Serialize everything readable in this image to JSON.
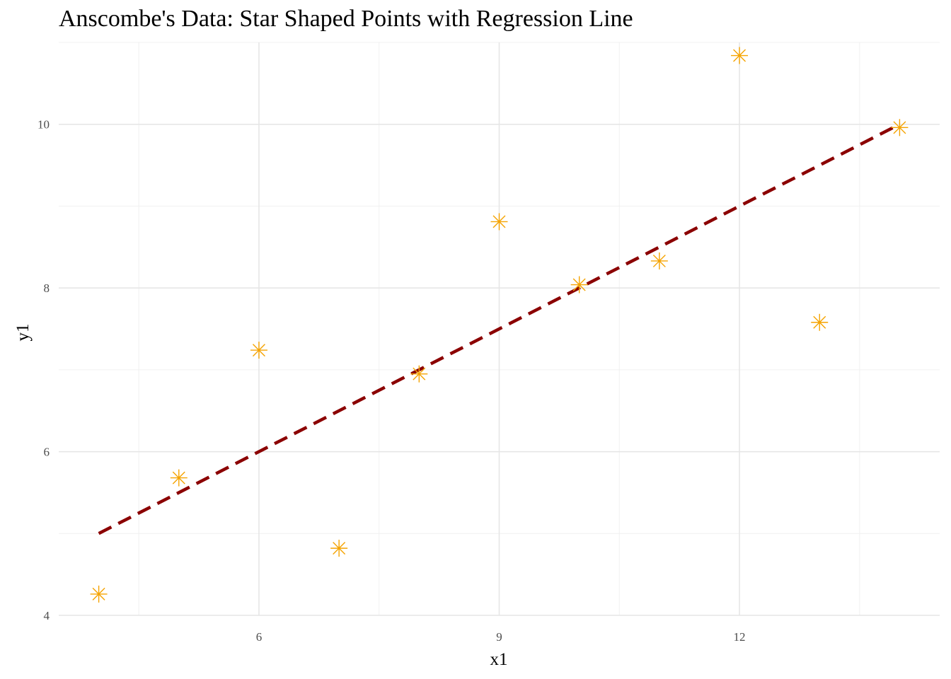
{
  "chart_data": {
    "type": "scatter",
    "title": "Anscombe's Data: Star Shaped Points with Regression Line",
    "xlabel": "x1",
    "ylabel": "y1",
    "xlim": [
      3.5,
      14.5
    ],
    "ylim": [
      4,
      11
    ],
    "x_ticks": [
      6,
      9,
      12
    ],
    "x_tick_labels": [
      "6",
      "9",
      "12"
    ],
    "x_minor": [
      4.5,
      7.5,
      10.5,
      13.5
    ],
    "y_ticks": [
      4,
      6,
      8,
      10
    ],
    "y_tick_labels": [
      "4",
      "6",
      "8",
      "10"
    ],
    "y_minor": [
      5,
      7,
      9,
      11
    ],
    "grid": true,
    "legend": "none",
    "series": [
      {
        "type": "scatter",
        "marker": "star",
        "color": "#f5a300",
        "points": [
          {
            "x": 10,
            "y": 8.04
          },
          {
            "x": 8,
            "y": 6.95
          },
          {
            "x": 13,
            "y": 7.58
          },
          {
            "x": 9,
            "y": 8.81
          },
          {
            "x": 11,
            "y": 8.33
          },
          {
            "x": 14,
            "y": 9.96
          },
          {
            "x": 6,
            "y": 7.24
          },
          {
            "x": 4,
            "y": 4.26
          },
          {
            "x": 12,
            "y": 10.84
          },
          {
            "x": 7,
            "y": 4.82
          },
          {
            "x": 5,
            "y": 5.68
          }
        ]
      },
      {
        "type": "line",
        "style": "dashed",
        "color": "#8b0000",
        "points": [
          {
            "x": 4,
            "y": 5.0
          },
          {
            "x": 14,
            "y": 10.0
          }
        ]
      }
    ]
  }
}
